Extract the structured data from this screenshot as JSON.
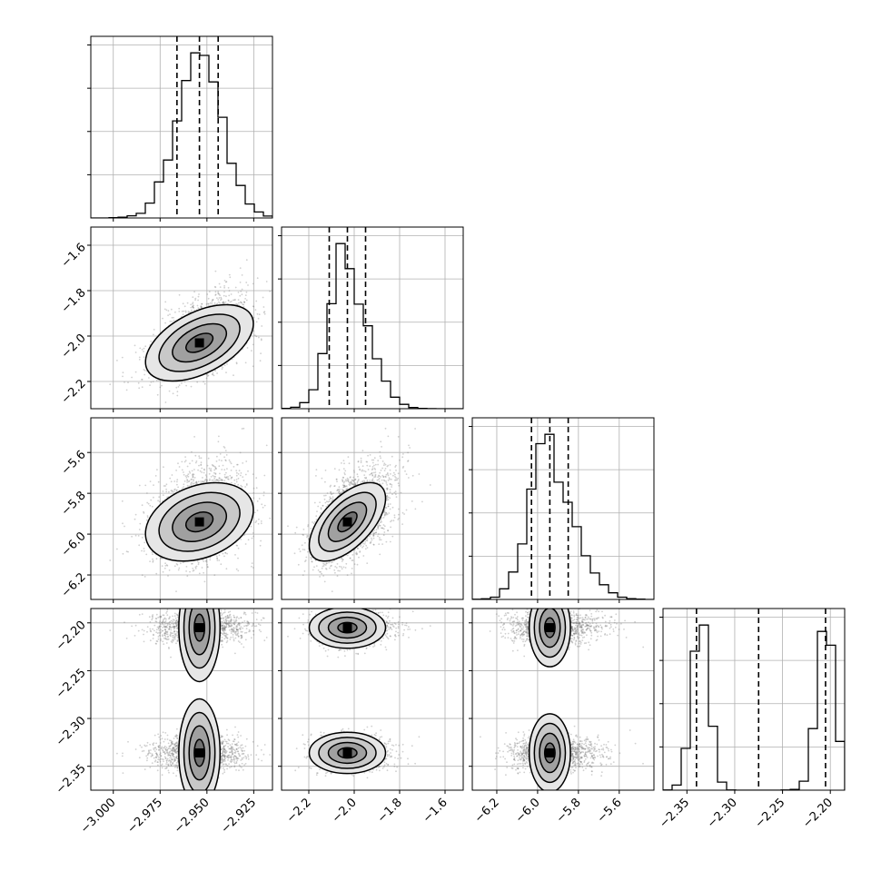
{
  "chart_data": {
    "type": "corner",
    "title": "",
    "grid": true,
    "parameters": [
      {
        "label": "",
        "range": [
          -3.012,
          -2.915
        ],
        "ticks": [
          -3.0,
          -2.975,
          -2.95,
          -2.925
        ],
        "tick_labels": [
          "−3.000",
          "−2.975",
          "−2.950",
          "−2.925"
        ],
        "mean": -2.954,
        "sd": 0.012,
        "skew": 0,
        "quantiles": [
          -2.966,
          -2.954,
          -2.944
        ]
      },
      {
        "label": "",
        "range": [
          -2.32,
          -1.52
        ],
        "ticks": [
          -2.2,
          -2.0,
          -1.8,
          -1.6
        ],
        "tick_labels": [
          "−2.2",
          "−2.0",
          "−1.8",
          "−1.6"
        ],
        "mean": -2.03,
        "sd": 0.07,
        "skew": 0.4,
        "quantiles": [
          -2.11,
          -2.03,
          -1.95
        ]
      },
      {
        "label": "",
        "range": [
          -6.32,
          -5.43
        ],
        "ticks": [
          -6.2,
          -6.0,
          -5.8,
          -5.6
        ],
        "tick_labels": [
          "−6.2",
          "−6.0",
          "−5.8",
          "−5.6"
        ],
        "mean": -5.94,
        "sd": 0.08,
        "skew": 0.4,
        "quantiles": [
          -6.03,
          -5.94,
          -5.85
        ]
      },
      {
        "label": "",
        "range": [
          -2.375,
          -2.185
        ],
        "ticks": [
          -2.35,
          -2.3,
          -2.25,
          -2.2
        ],
        "tick_labels": [
          "−2.35",
          "−2.30",
          "−2.25",
          "−2.20"
        ],
        "bimodal": {
          "means": [
            -2.336,
            -2.205
          ],
          "sd": 0.009,
          "weights": [
            0.5,
            0.5
          ]
        },
        "quantiles": [
          -2.34,
          -2.275,
          -2.205
        ]
      }
    ],
    "correlations": [
      [
        1,
        0.5,
        0.3,
        0
      ],
      [
        0.5,
        1,
        0.6,
        0
      ],
      [
        0.3,
        0.6,
        1,
        0
      ],
      [
        0,
        0,
        0,
        1
      ]
    ],
    "contour_levels_sigma": [
      0.5,
      1.0,
      1.5,
      2.0
    ]
  }
}
